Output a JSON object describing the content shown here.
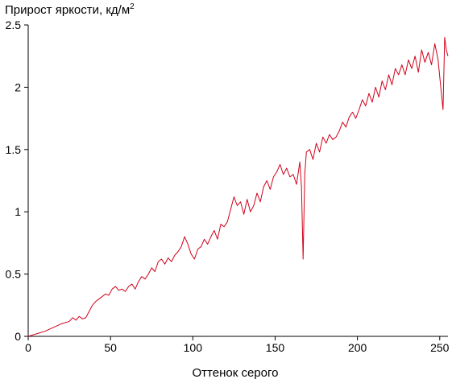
{
  "chart_data": {
    "type": "line",
    "title": "Прирост яркости, кд/м",
    "title_superscript": "2",
    "xlabel": "Оттенок серого",
    "ylabel": "",
    "xlim": [
      0,
      255
    ],
    "ylim": [
      0,
      2.5
    ],
    "x_ticks": [
      "0",
      "50",
      "100",
      "150",
      "200",
      "250"
    ],
    "y_ticks": [
      "0",
      "0.5",
      "1",
      "1.5",
      "2",
      "2.5"
    ],
    "grid": false,
    "line_color": "#d0021b",
    "series": [
      {
        "points": [
          [
            0,
            0
          ],
          [
            5,
            0.02
          ],
          [
            10,
            0.04
          ],
          [
            15,
            0.07
          ],
          [
            20,
            0.1
          ],
          [
            25,
            0.12
          ],
          [
            27,
            0.15
          ],
          [
            29,
            0.13
          ],
          [
            31,
            0.16
          ],
          [
            33,
            0.14
          ],
          [
            35,
            0.15
          ],
          [
            37,
            0.2
          ],
          [
            39,
            0.25
          ],
          [
            41,
            0.28
          ],
          [
            43,
            0.3
          ],
          [
            45,
            0.32
          ],
          [
            47,
            0.34
          ],
          [
            49,
            0.33
          ],
          [
            51,
            0.38
          ],
          [
            53,
            0.4
          ],
          [
            55,
            0.37
          ],
          [
            57,
            0.38
          ],
          [
            59,
            0.36
          ],
          [
            61,
            0.4
          ],
          [
            63,
            0.42
          ],
          [
            65,
            0.38
          ],
          [
            67,
            0.44
          ],
          [
            69,
            0.48
          ],
          [
            71,
            0.46
          ],
          [
            73,
            0.5
          ],
          [
            75,
            0.55
          ],
          [
            77,
            0.52
          ],
          [
            79,
            0.6
          ],
          [
            81,
            0.62
          ],
          [
            83,
            0.58
          ],
          [
            85,
            0.63
          ],
          [
            87,
            0.6
          ],
          [
            89,
            0.65
          ],
          [
            91,
            0.68
          ],
          [
            93,
            0.72
          ],
          [
            95,
            0.8
          ],
          [
            97,
            0.74
          ],
          [
            99,
            0.66
          ],
          [
            101,
            0.62
          ],
          [
            103,
            0.7
          ],
          [
            105,
            0.72
          ],
          [
            107,
            0.78
          ],
          [
            109,
            0.74
          ],
          [
            111,
            0.8
          ],
          [
            113,
            0.85
          ],
          [
            115,
            0.78
          ],
          [
            117,
            0.9
          ],
          [
            119,
            0.88
          ],
          [
            121,
            0.92
          ],
          [
            123,
            1.02
          ],
          [
            125,
            1.12
          ],
          [
            127,
            1.05
          ],
          [
            129,
            1.08
          ],
          [
            131,
            0.98
          ],
          [
            133,
            1.1
          ],
          [
            135,
            1.0
          ],
          [
            137,
            1.05
          ],
          [
            139,
            1.15
          ],
          [
            141,
            1.08
          ],
          [
            143,
            1.2
          ],
          [
            145,
            1.25
          ],
          [
            147,
            1.18
          ],
          [
            149,
            1.28
          ],
          [
            151,
            1.32
          ],
          [
            153,
            1.38
          ],
          [
            155,
            1.3
          ],
          [
            157,
            1.35
          ],
          [
            159,
            1.28
          ],
          [
            161,
            1.3
          ],
          [
            163,
            1.22
          ],
          [
            165,
            1.4
          ],
          [
            166,
            1.2
          ],
          [
            167,
            0.62
          ],
          [
            168,
            1.3
          ],
          [
            169,
            1.48
          ],
          [
            171,
            1.5
          ],
          [
            173,
            1.42
          ],
          [
            175,
            1.55
          ],
          [
            177,
            1.48
          ],
          [
            179,
            1.6
          ],
          [
            181,
            1.55
          ],
          [
            183,
            1.62
          ],
          [
            185,
            1.58
          ],
          [
            187,
            1.6
          ],
          [
            189,
            1.65
          ],
          [
            191,
            1.72
          ],
          [
            193,
            1.68
          ],
          [
            195,
            1.76
          ],
          [
            197,
            1.8
          ],
          [
            199,
            1.75
          ],
          [
            201,
            1.82
          ],
          [
            203,
            1.9
          ],
          [
            205,
            1.85
          ],
          [
            207,
            1.95
          ],
          [
            209,
            1.88
          ],
          [
            211,
            2.0
          ],
          [
            213,
            1.92
          ],
          [
            215,
            2.05
          ],
          [
            217,
            1.98
          ],
          [
            219,
            2.1
          ],
          [
            221,
            2.02
          ],
          [
            223,
            2.15
          ],
          [
            225,
            2.1
          ],
          [
            227,
            2.18
          ],
          [
            229,
            2.1
          ],
          [
            231,
            2.22
          ],
          [
            233,
            2.15
          ],
          [
            235,
            2.25
          ],
          [
            237,
            2.12
          ],
          [
            239,
            2.3
          ],
          [
            241,
            2.2
          ],
          [
            243,
            2.28
          ],
          [
            245,
            2.18
          ],
          [
            247,
            2.35
          ],
          [
            249,
            2.22
          ],
          [
            251,
            1.95
          ],
          [
            252,
            1.82
          ],
          [
            253,
            2.4
          ],
          [
            254,
            2.3
          ],
          [
            255,
            2.25
          ]
        ]
      }
    ]
  }
}
